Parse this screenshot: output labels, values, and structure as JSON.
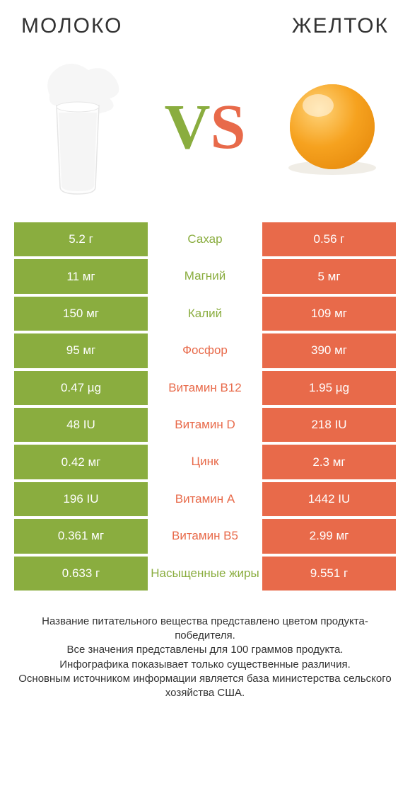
{
  "colors": {
    "left": "#8aad3f",
    "right": "#e86a4a",
    "text": "#333333",
    "background": "#ffffff"
  },
  "header": {
    "left_title": "МОЛОКО",
    "right_title": "ЖЕЛТОК"
  },
  "vs": {
    "v": "V",
    "s": "S"
  },
  "table": {
    "type": "comparison-table",
    "rows": [
      {
        "left": "5.2 г",
        "label": "Сахар",
        "right": "0.56 г",
        "winner": "left"
      },
      {
        "left": "11 мг",
        "label": "Магний",
        "right": "5 мг",
        "winner": "left"
      },
      {
        "left": "150 мг",
        "label": "Калий",
        "right": "109 мг",
        "winner": "left"
      },
      {
        "left": "95 мг",
        "label": "Фосфор",
        "right": "390 мг",
        "winner": "right"
      },
      {
        "left": "0.47 µg",
        "label": "Витамин B12",
        "right": "1.95 µg",
        "winner": "right"
      },
      {
        "left": "48 IU",
        "label": "Витамин D",
        "right": "218 IU",
        "winner": "right"
      },
      {
        "left": "0.42 мг",
        "label": "Цинк",
        "right": "2.3 мг",
        "winner": "right"
      },
      {
        "left": "196 IU",
        "label": "Витамин A",
        "right": "1442 IU",
        "winner": "right"
      },
      {
        "left": "0.361 мг",
        "label": "Витамин B5",
        "right": "2.99 мг",
        "winner": "right"
      },
      {
        "left": "0.633 г",
        "label": "Насыщенные жиры",
        "right": "9.551 г",
        "winner": "left"
      }
    ]
  },
  "footnote": {
    "line1": "Название питательного вещества представлено цветом продукта-победителя.",
    "line2": "Все значения представлены для 100 граммов продукта.",
    "line3": "Инфографика показывает только существенные различия.",
    "line4": "Основным источником информации является база министерства сельского хозяйства США."
  }
}
